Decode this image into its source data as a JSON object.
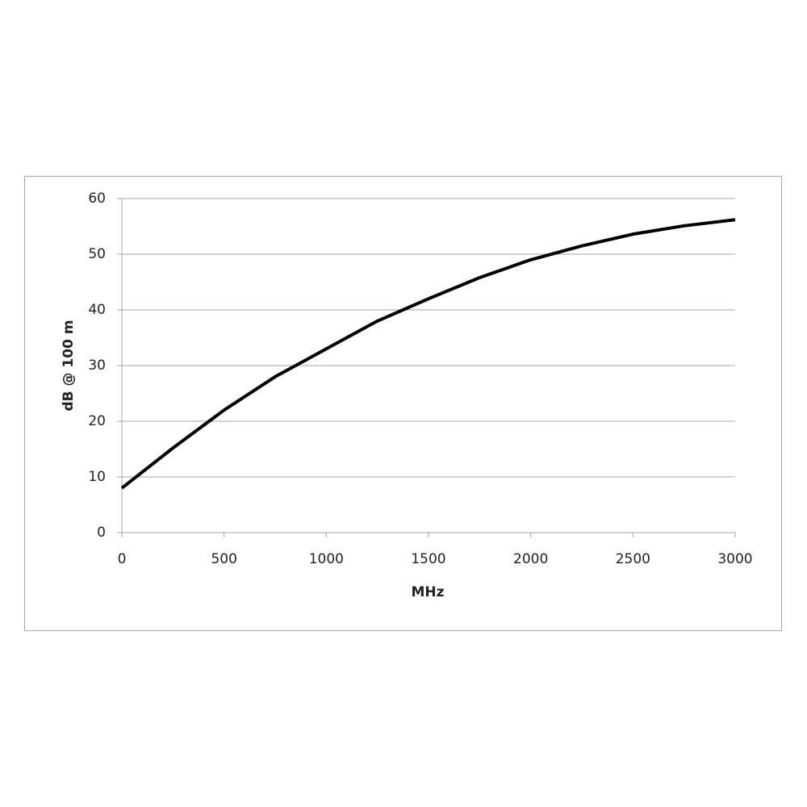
{
  "chart_data": {
    "type": "line",
    "x_label": "MHz",
    "y_label": "dB @ 100 m",
    "x": [
      0,
      250,
      500,
      750,
      1000,
      1250,
      1500,
      1750,
      2000,
      2250,
      2500,
      2750,
      3000
    ],
    "series": [
      {
        "color": "#000000",
        "values": [
          8,
          15.2,
          22,
          28,
          33,
          38,
          42,
          45.8,
          49,
          51.5,
          53.6,
          55.1,
          56.2
        ]
      }
    ],
    "xlim": [
      0,
      3000
    ],
    "xticks": [
      0,
      500,
      1000,
      1500,
      2000,
      2500,
      3000
    ],
    "ylim": [
      0,
      60
    ],
    "yticks": [
      0,
      10,
      20,
      30,
      40,
      50,
      60
    ],
    "grid": true
  }
}
